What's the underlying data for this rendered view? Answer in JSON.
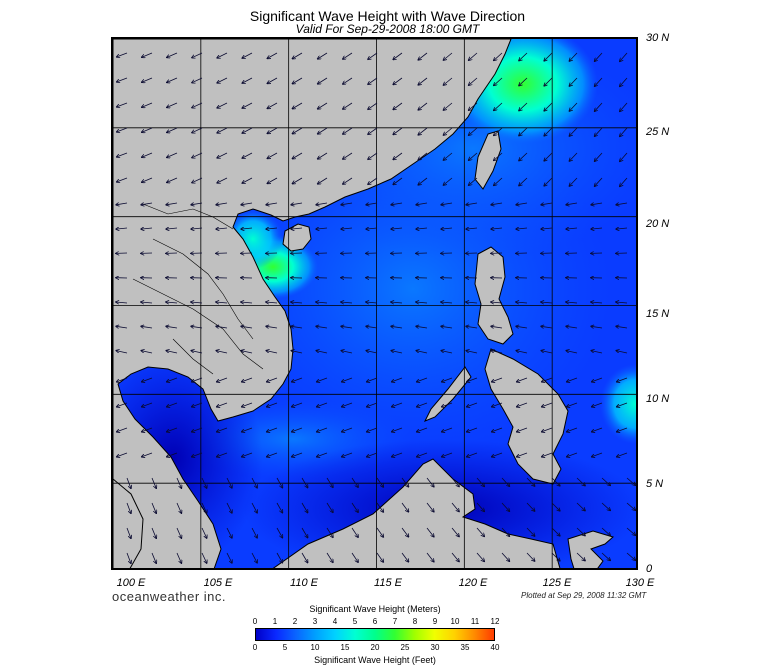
{
  "header": {
    "title": "Significant Wave Height with Wave Direction",
    "subtitle": "Valid For Sep-29-2008 18:00 GMT"
  },
  "axes": {
    "lat_labels": [
      "30 N",
      "25 N",
      "20 N",
      "15 N",
      "10 N",
      "5 N",
      "0"
    ],
    "lon_labels": [
      "100 E",
      "105 E",
      "110 E",
      "115 E",
      "120 E",
      "125 E",
      "130 E"
    ],
    "lat_range": [
      0,
      30
    ],
    "lon_range": [
      100,
      130
    ],
    "grid": true
  },
  "footer": {
    "brand": "oceanweather inc.",
    "plotted": "Plotted at Sep 29, 2008 11:32 GMT"
  },
  "colorbar": {
    "meters_title": "Significant Wave Height (Meters)",
    "feet_title": "Significant Wave Height (Feet)",
    "meters_ticks": [
      "0",
      "1",
      "2",
      "3",
      "4",
      "5",
      "6",
      "7",
      "8",
      "9",
      "10",
      "11",
      "12"
    ],
    "feet_ticks": [
      "0",
      "5",
      "10",
      "15",
      "20",
      "25",
      "30",
      "35",
      "40"
    ],
    "colors": [
      "#0000c8",
      "#0a28ff",
      "#0a64ff",
      "#00a0ff",
      "#00d2ff",
      "#00ffd2",
      "#00ff8c",
      "#32ff32",
      "#a0ff00",
      "#f0ff00",
      "#ffd200",
      "#ff8c00",
      "#ff3c00"
    ]
  },
  "colors": {
    "land": "#c0c0c0",
    "ocean_base": "#0a3cff",
    "arrow": "#0a0a30"
  }
}
